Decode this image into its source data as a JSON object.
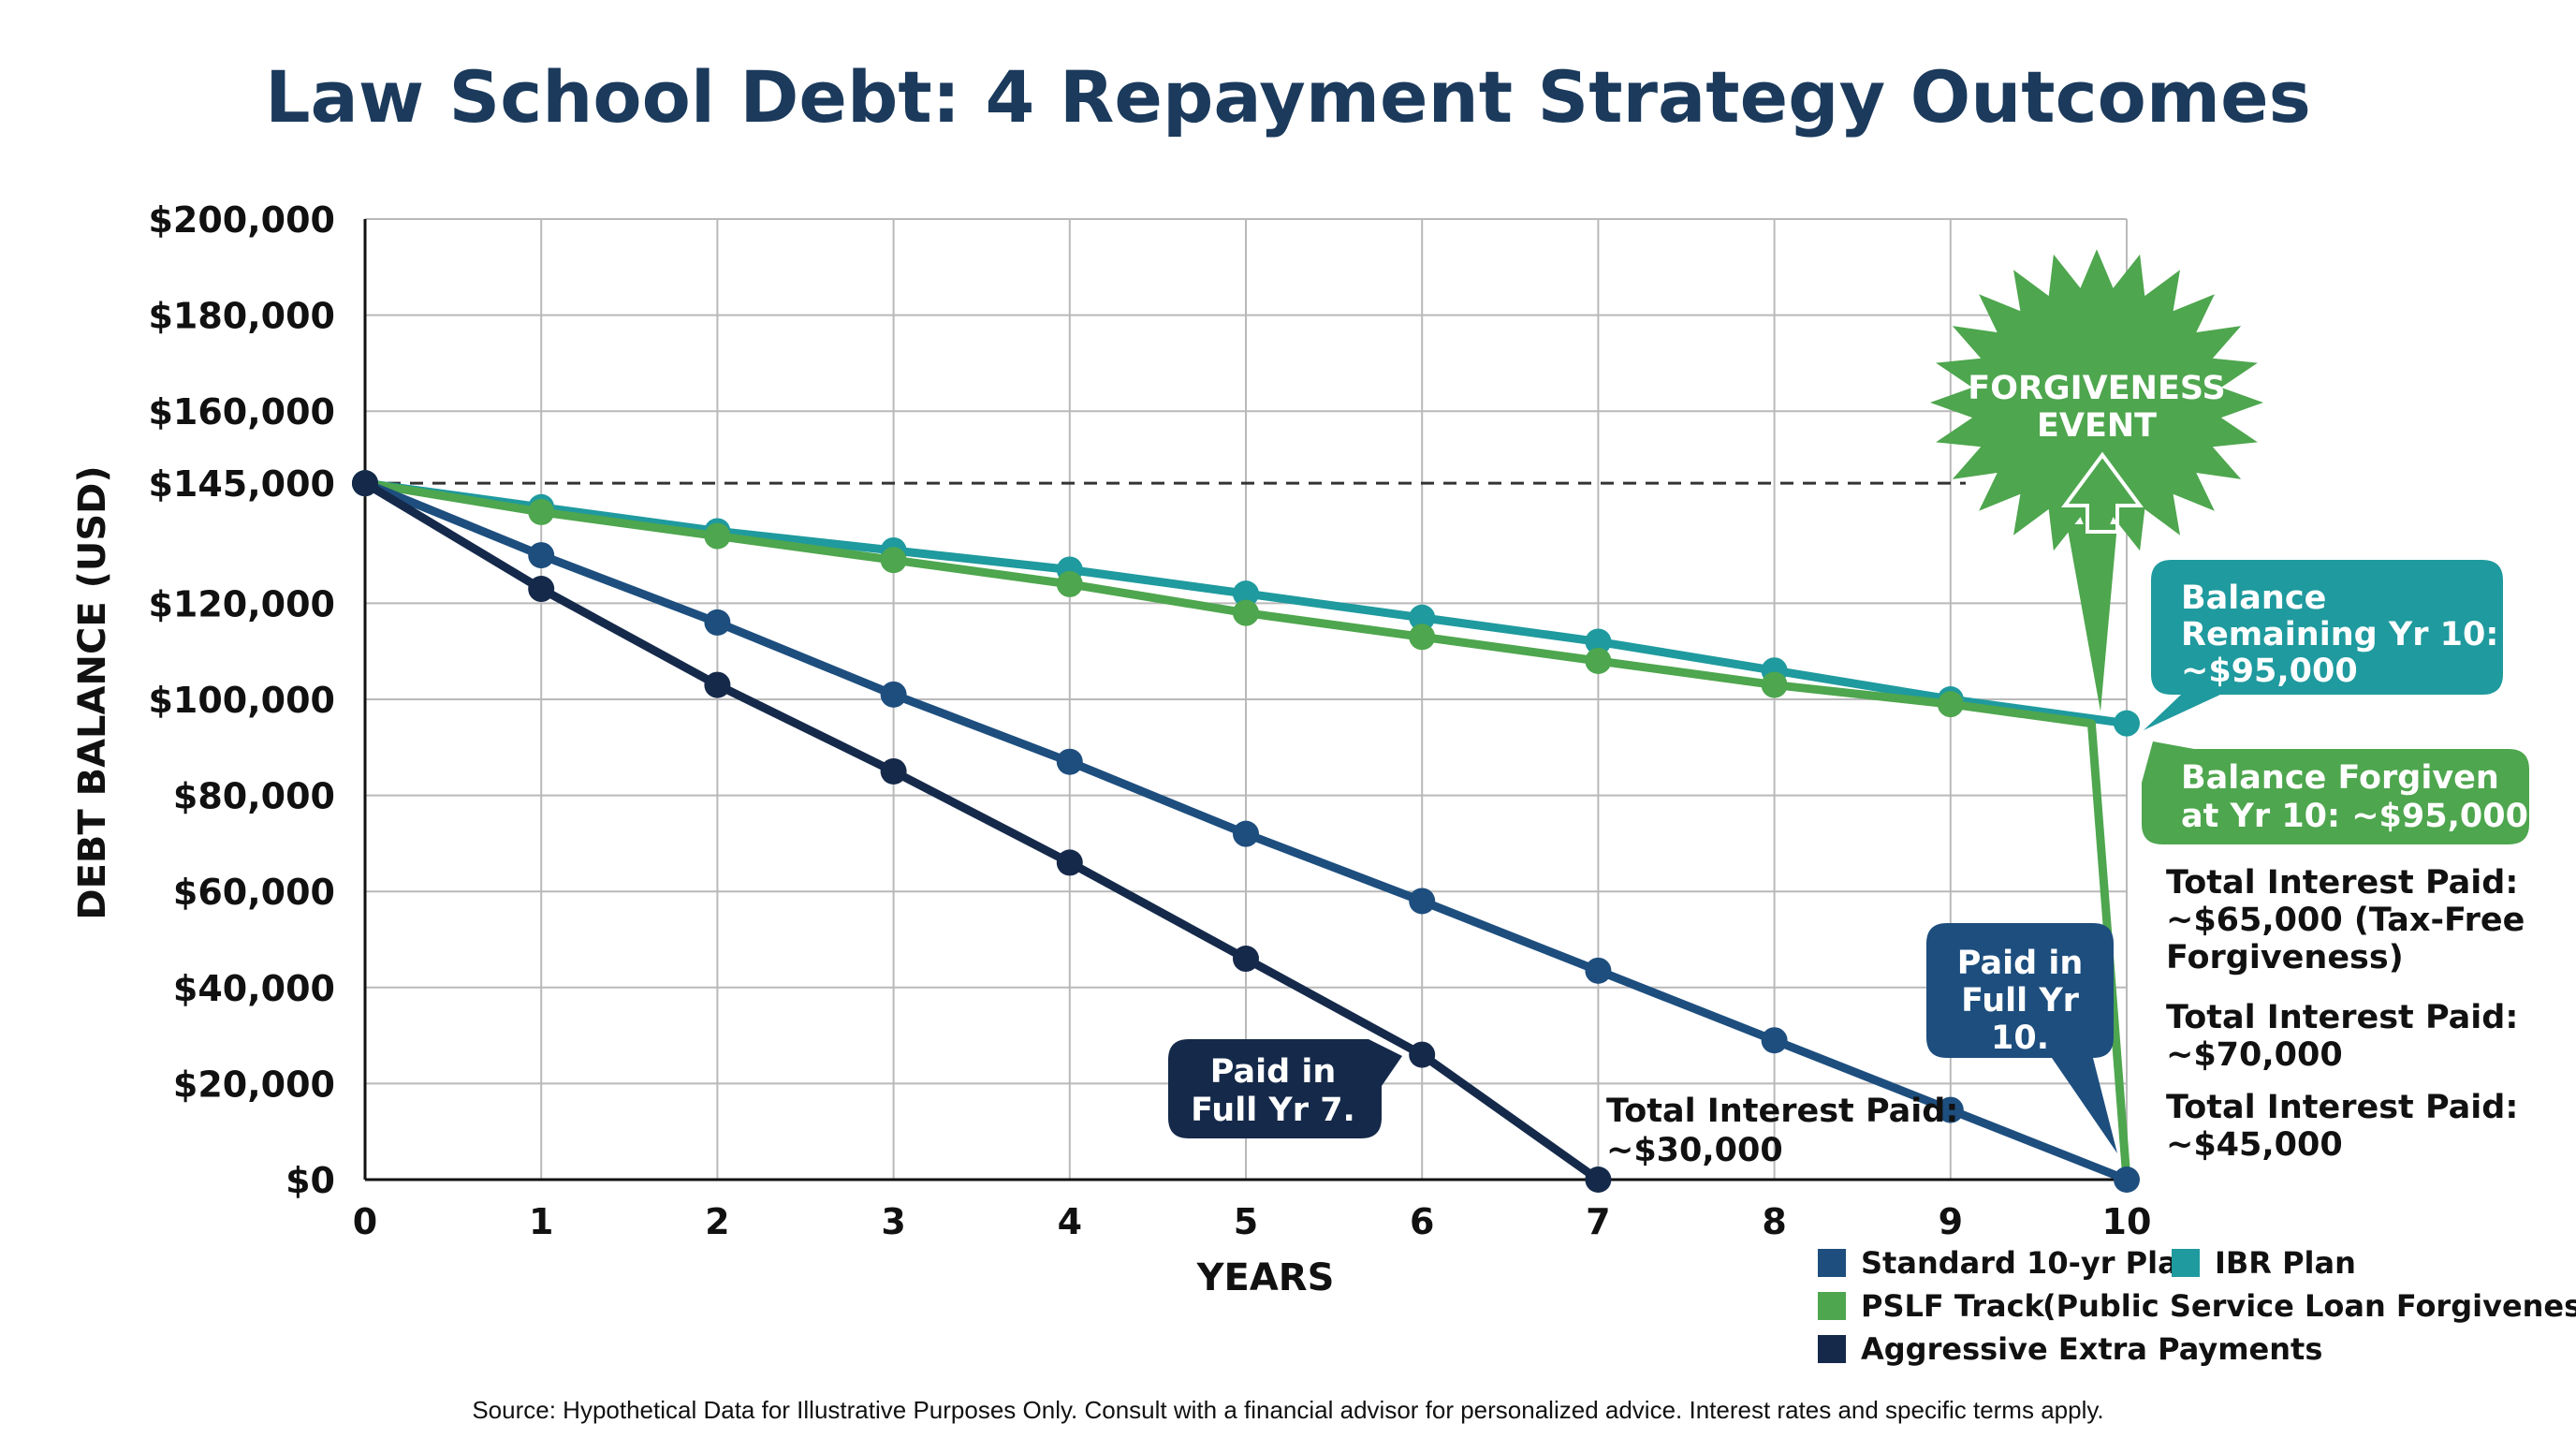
{
  "chart_data": {
    "type": "line",
    "title": "Law School Debt: 4 Repayment Strategy Outcomes",
    "xlabel": "YEARS",
    "ylabel": "DEBT BALANCE (USD)",
    "x": [
      0,
      1,
      2,
      3,
      4,
      5,
      6,
      7,
      8,
      9,
      10
    ],
    "xlim": [
      0,
      10
    ],
    "ylim": [
      0,
      200000
    ],
    "y_ticks": [
      {
        "value": 0,
        "label": "$0"
      },
      {
        "value": 20000,
        "label": "$20,000"
      },
      {
        "value": 40000,
        "label": "$40,000"
      },
      {
        "value": 60000,
        "label": "$60,000"
      },
      {
        "value": 80000,
        "label": "$80,000"
      },
      {
        "value": 100000,
        "label": "$100,000"
      },
      {
        "value": 120000,
        "label": "$120,000"
      },
      {
        "value": 145000,
        "label": "$145,000"
      },
      {
        "value": 160000,
        "label": "$160,000"
      },
      {
        "value": 180000,
        "label": "$180,000"
      },
      {
        "value": 200000,
        "label": "$200,000"
      }
    ],
    "grid": true,
    "reference_line": {
      "y": 145000,
      "style": "dashed"
    },
    "legend_position": "bottom-right",
    "series": [
      {
        "name": "Standard 10-yr Plan",
        "color": "#1d4e7e",
        "x": [
          0,
          1,
          2,
          3,
          4,
          5,
          6,
          7,
          8,
          9,
          10
        ],
        "values": [
          145000,
          130000,
          116000,
          101000,
          87000,
          72000,
          58000,
          43500,
          29000,
          14500,
          0
        ]
      },
      {
        "name": "IBR Plan",
        "color": "#1f9a9e",
        "x": [
          0,
          1,
          2,
          3,
          4,
          5,
          6,
          7,
          8,
          9,
          10
        ],
        "values": [
          145000,
          140000,
          135000,
          131000,
          127000,
          122000,
          117000,
          112000,
          106000,
          100000,
          95000
        ]
      },
      {
        "name": "PSLF Track",
        "color": "#4ea64e",
        "x": [
          0,
          1,
          2,
          3,
          4,
          5,
          6,
          7,
          8,
          9,
          9.8,
          10
        ],
        "values": [
          145000,
          139000,
          134000,
          129000,
          124000,
          118000,
          113000,
          108000,
          103000,
          99000,
          95000,
          0
        ],
        "markers": [
          0,
          1,
          2,
          3,
          4,
          5,
          6,
          7,
          8,
          9
        ]
      },
      {
        "name": "Aggressive Extra Payments",
        "color": "#15294a",
        "x": [
          0,
          1,
          2,
          3,
          4,
          5,
          6,
          7
        ],
        "values": [
          145000,
          123000,
          103000,
          85000,
          66000,
          46000,
          26000,
          0
        ]
      }
    ],
    "annotations": {
      "forgiveness_badge": [
        "FORGIVENESS",
        "EVENT"
      ],
      "ibr_bubble": [
        "Balance",
        "Remaining Yr 10:",
        "~$95,000"
      ],
      "pslf_bubble": [
        "Balance Forgiven",
        "at Yr 10: ~$95,000"
      ],
      "aggressive_bubble": [
        "Paid in",
        "Full Yr 7."
      ],
      "standard_bubble": [
        "Paid in",
        "Full Yr",
        "10."
      ],
      "interest_aggressive": [
        "Total Interest Paid:",
        "~$30,000"
      ],
      "interest_pslf": [
        "Total Interest Paid:",
        "~$65,000 (Tax-Free",
        "Forgiveness)"
      ],
      "interest_ibr": [
        "Total Interest Paid:",
        "~$70,000"
      ],
      "interest_standard": [
        "Total Interest Paid:",
        "~$45,000"
      ]
    },
    "legend": [
      {
        "label": "Standard 10-yr Plan",
        "color": "#1d4e7e"
      },
      {
        "label": "IBR Plan",
        "color": "#1f9a9e"
      },
      {
        "label": "PSLF Track",
        "color": "#4ea64e",
        "note": "(Public Service Loan Forgiveness)"
      },
      {
        "label": "Aggressive Extra Payments",
        "color": "#15294a"
      }
    ],
    "source": "Source: Hypothetical Data for Illustrative Purposes Only. Consult with a financial advisor for personalized advice. Interest rates and specific terms apply."
  }
}
